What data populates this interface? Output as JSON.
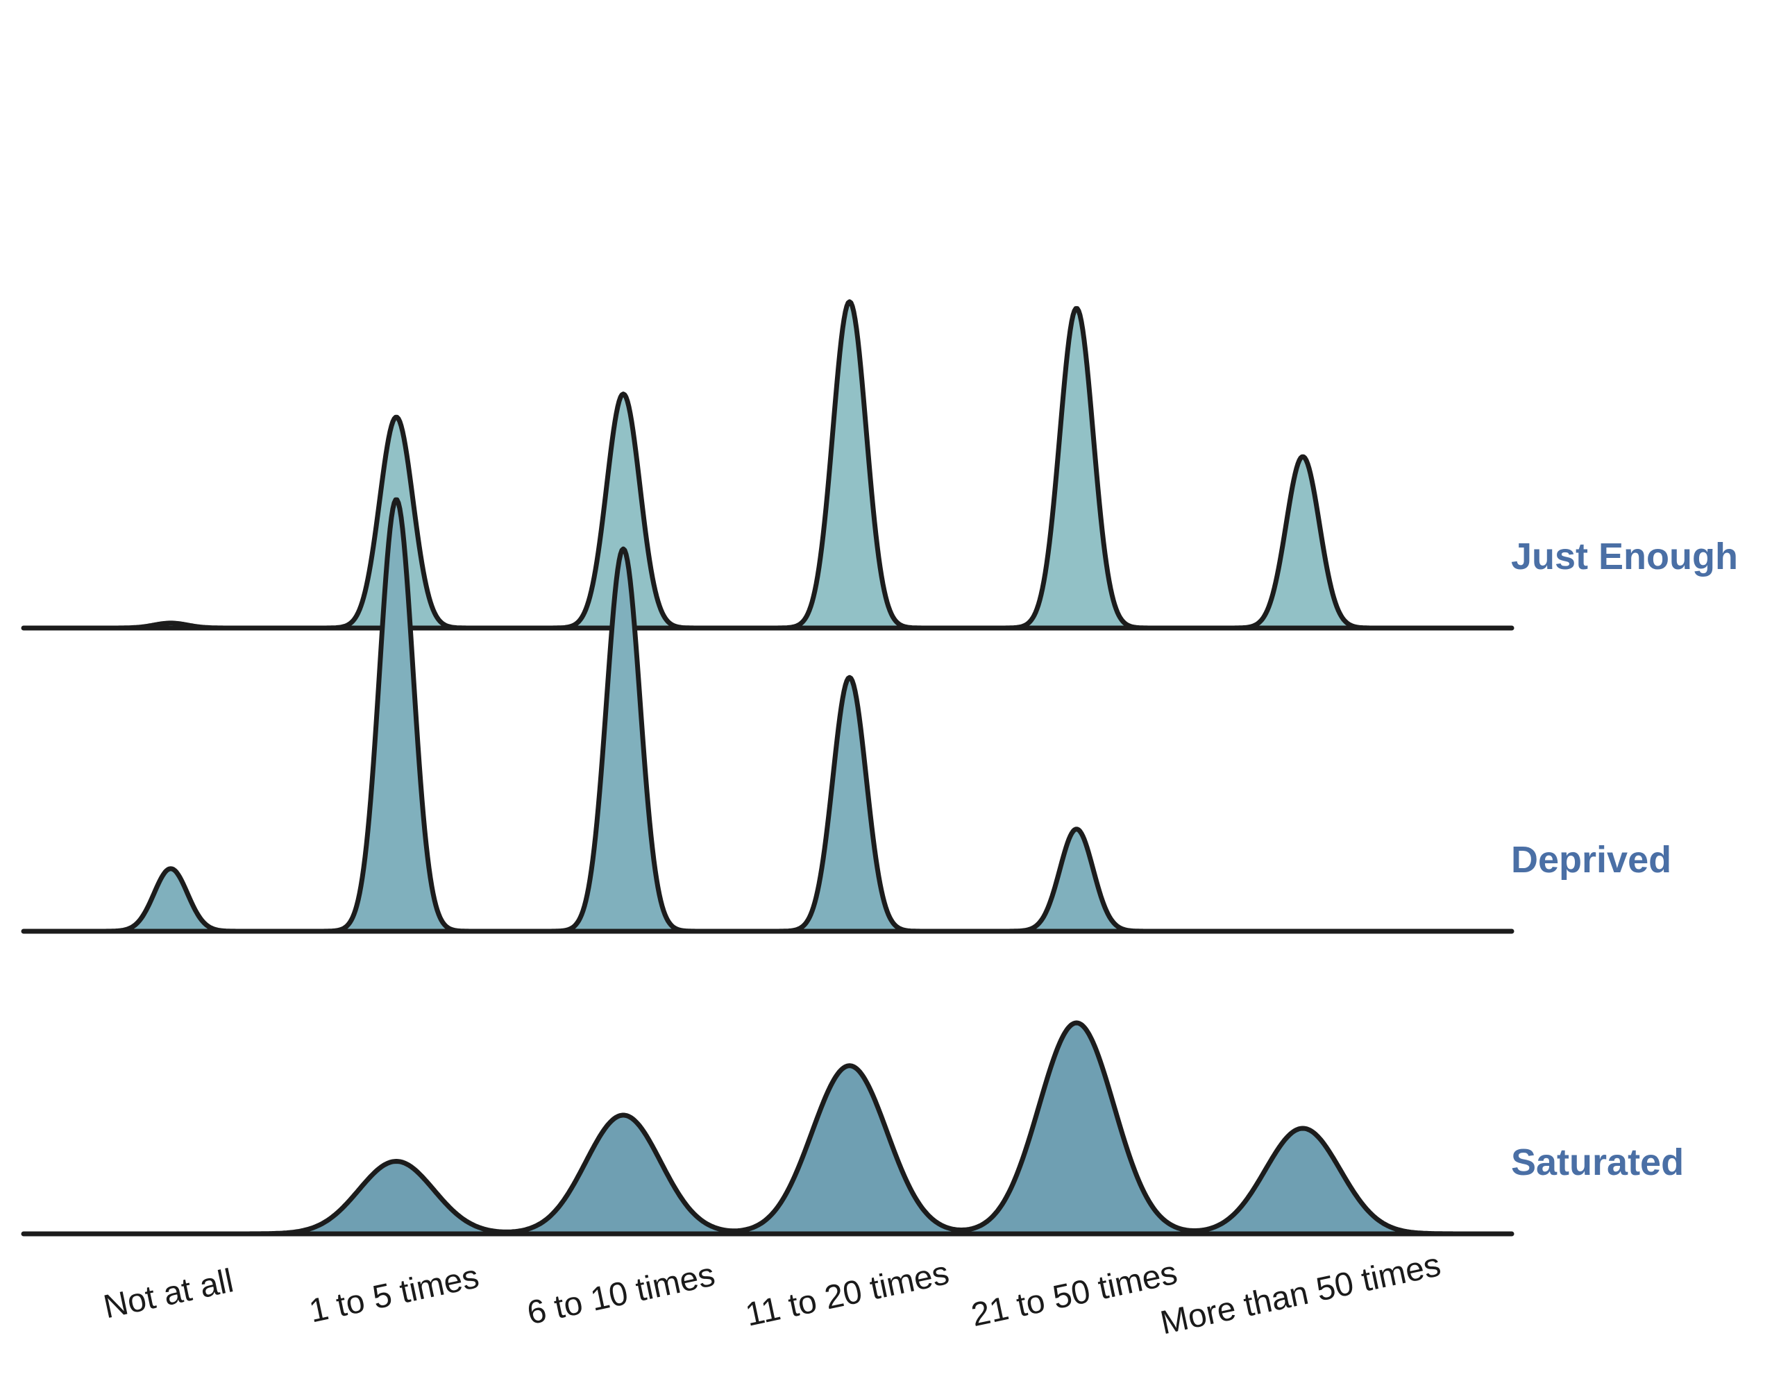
{
  "chart_data": {
    "type": "ridgeline",
    "title": "",
    "xlabel": "",
    "ylabel": "",
    "grid": false,
    "legend": "none",
    "categories": [
      "Not at all",
      "1 to 5 times",
      "6 to 10 times",
      "11 to 20 times",
      "21 to 50 times",
      "More than 50 times"
    ],
    "label_color": "#4a6fa5",
    "line_color": "#1c1c1c",
    "series": [
      {
        "name": "Just Enough",
        "color": "#92c1c6",
        "values": [
          0.015,
          0.64,
          0.71,
          0.99,
          0.97,
          0.52
        ]
      },
      {
        "name": "Deprived",
        "color": "#80b0bd",
        "values": [
          0.19,
          1.31,
          1.16,
          0.77,
          0.31,
          0.0
        ]
      },
      {
        "name": "Saturated",
        "color": "#6f9fb2",
        "values": [
          0.0,
          0.22,
          0.36,
          0.51,
          0.64,
          0.32
        ]
      }
    ]
  }
}
